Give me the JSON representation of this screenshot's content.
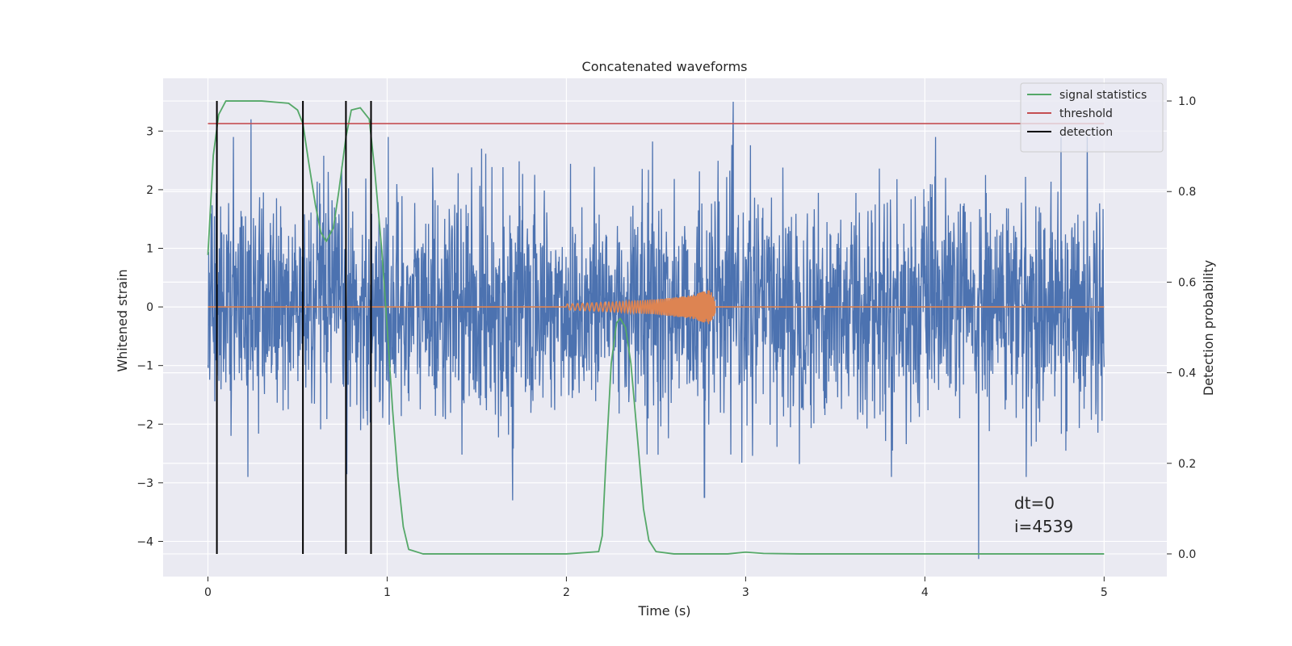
{
  "chart_data": {
    "type": "line",
    "title": "Concatenated waveforms",
    "xlabel": "Time (s)",
    "ylabel": "Whitened strain",
    "ylabel_right": "Detection probability",
    "xlim": [
      -0.25,
      5.35
    ],
    "ylim": [
      -4.6,
      3.9
    ],
    "ylim_right": [
      -0.05,
      1.05
    ],
    "xticks": [
      0,
      1,
      2,
      3,
      4,
      5
    ],
    "xtick_labels": [
      "0",
      "1",
      "2",
      "3",
      "4",
      "5"
    ],
    "yticks": [
      -4,
      -3,
      -2,
      -1,
      0,
      1,
      2,
      3
    ],
    "ytick_labels": [
      "−4",
      "−3",
      "−2",
      "−1",
      "0",
      "1",
      "2",
      "3"
    ],
    "yticks_right": [
      0.0,
      0.2,
      0.4,
      0.6,
      0.8,
      1.0
    ],
    "ytick_labels_right": [
      "0.0",
      "0.2",
      "0.4",
      "0.6",
      "0.8",
      "1.0"
    ],
    "grid": true,
    "legend_position": "top-right",
    "annotation": [
      "dt=0",
      "i=4539"
    ],
    "colors": {
      "background": "#eaeaf2",
      "grid": "#ffffff",
      "strain": "#4c72b0",
      "template": "#dd8452",
      "signal_statistics": "#55a868",
      "threshold": "#c44e52",
      "detection": "#000000"
    },
    "series": [
      {
        "name": "",
        "axis": "left",
        "color": "#4c72b0",
        "description": "whitened strain noise, t in [0, 5], roughly gaussian with occasional spikes",
        "x_range": [
          0,
          5
        ],
        "notable_points": [
          [
            0.24,
            3.2
          ],
          [
            2.93,
            3.5
          ],
          [
            4.3,
            -4.3
          ],
          [
            2.77,
            -3.25
          ],
          [
            1.7,
            -3.3
          ]
        ]
      },
      {
        "name": "",
        "axis": "left",
        "color": "#dd8452",
        "description": "injected chirp template, flat zero except 2.0 to 2.83 s",
        "x": [
          0,
          2.0,
          2.3,
          2.5,
          2.7,
          2.8,
          2.85,
          5
        ],
        "amplitude": [
          0,
          0.05,
          0.09,
          0.13,
          0.2,
          0.3,
          0.0,
          0
        ]
      },
      {
        "name": "signal statistics",
        "axis": "right",
        "color": "#55a868",
        "x": [
          0,
          0.03,
          0.06,
          0.1,
          0.15,
          0.3,
          0.45,
          0.5,
          0.53,
          0.56,
          0.6,
          0.63,
          0.66,
          0.7,
          0.73,
          0.77,
          0.8,
          0.85,
          0.9,
          0.93,
          0.97,
          1.0,
          1.03,
          1.06,
          1.09,
          1.12,
          1.2,
          2.0,
          2.18,
          2.2,
          2.22,
          2.25,
          2.28,
          2.3,
          2.33,
          2.36,
          2.4,
          2.43,
          2.46,
          2.5,
          2.6,
          2.9,
          3.0,
          3.1,
          3.3,
          5.0
        ],
        "values": [
          0.66,
          0.88,
          0.97,
          1.0,
          1.0,
          1.0,
          0.995,
          0.98,
          0.95,
          0.87,
          0.77,
          0.71,
          0.69,
          0.72,
          0.8,
          0.92,
          0.98,
          0.985,
          0.96,
          0.85,
          0.67,
          0.5,
          0.32,
          0.17,
          0.06,
          0.01,
          0.0,
          0.0,
          0.005,
          0.04,
          0.2,
          0.42,
          0.51,
          0.52,
          0.5,
          0.42,
          0.24,
          0.1,
          0.03,
          0.005,
          0.0,
          0.0,
          0.004,
          0.001,
          0.0,
          0.0
        ]
      },
      {
        "name": "threshold",
        "axis": "right",
        "color": "#c44e52",
        "x": [
          0,
          5
        ],
        "values": [
          0.95,
          0.95
        ]
      },
      {
        "name": "detection",
        "axis": "right",
        "color": "#000000",
        "type": "vlines",
        "x": [
          0.05,
          0.53,
          0.77,
          0.91
        ],
        "range": [
          0.0,
          1.0
        ]
      }
    ]
  }
}
